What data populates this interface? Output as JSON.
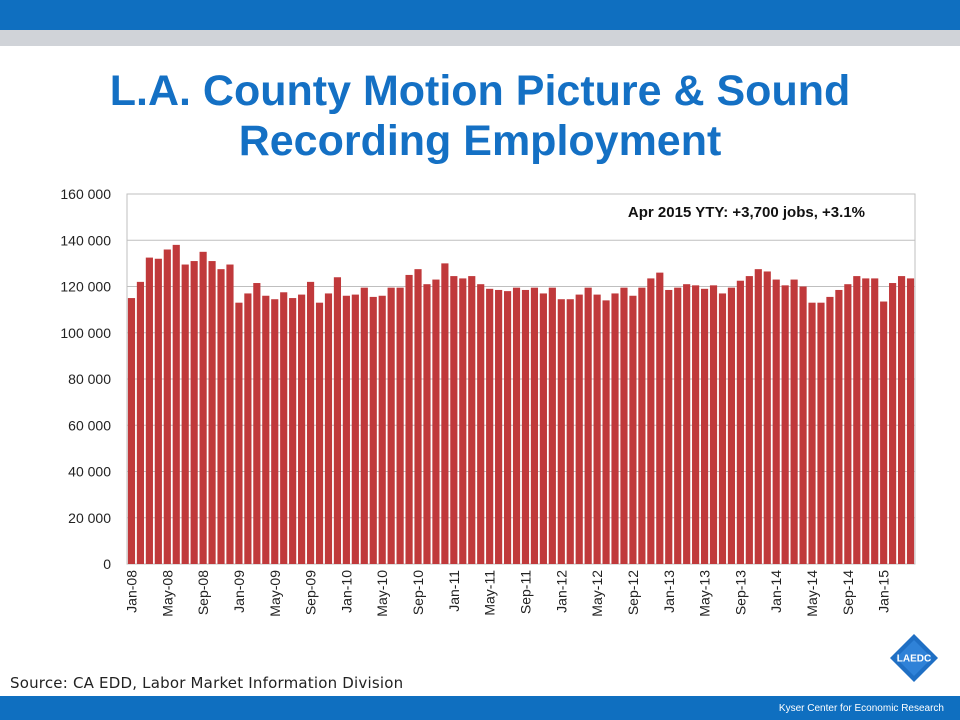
{
  "title": {
    "line1": "L.A. County Motion Picture & Sound",
    "line2": "Recording Employment"
  },
  "source": "Source: CA EDD, Labor Market Information Division",
  "footer": "Kyser Center for Economic Research",
  "logo_text": "LAEDC",
  "colors": {
    "bar": "#c0393b",
    "brand": "#0f6fc0",
    "title": "#1470c4"
  },
  "chart_data": {
    "type": "bar",
    "annotation": "Apr 2015 YTY:  +3,700 jobs, +3.1%",
    "ylim": [
      0,
      160000
    ],
    "yticks": [
      0,
      20000,
      40000,
      60000,
      80000,
      100000,
      120000,
      140000,
      160000
    ],
    "ytick_labels": [
      "0",
      "20 000",
      "40 000",
      "60 000",
      "80 000",
      "100 000",
      "120 000",
      "140 000",
      "160 000"
    ],
    "xtick_labels": [
      "Jan-08",
      "May-08",
      "Sep-08",
      "Jan-09",
      "May-09",
      "Sep-09",
      "Jan-10",
      "May-10",
      "Sep-10",
      "Jan-11",
      "May-11",
      "Sep-11",
      "Jan-12",
      "May-12",
      "Sep-12",
      "Jan-13",
      "May-13",
      "Sep-13",
      "Jan-14",
      "May-14",
      "Sep-14",
      "Jan-15"
    ],
    "xtick_every": 4,
    "grid": true,
    "categories": [
      "Jan-08",
      "Feb-08",
      "Mar-08",
      "Apr-08",
      "May-08",
      "Jun-08",
      "Jul-08",
      "Aug-08",
      "Sep-08",
      "Oct-08",
      "Nov-08",
      "Dec-08",
      "Jan-09",
      "Feb-09",
      "Mar-09",
      "Apr-09",
      "May-09",
      "Jun-09",
      "Jul-09",
      "Aug-09",
      "Sep-09",
      "Oct-09",
      "Nov-09",
      "Dec-09",
      "Jan-10",
      "Feb-10",
      "Mar-10",
      "Apr-10",
      "May-10",
      "Jun-10",
      "Jul-10",
      "Aug-10",
      "Sep-10",
      "Oct-10",
      "Nov-10",
      "Dec-10",
      "Jan-11",
      "Feb-11",
      "Mar-11",
      "Apr-11",
      "May-11",
      "Jun-11",
      "Jul-11",
      "Aug-11",
      "Sep-11",
      "Oct-11",
      "Nov-11",
      "Dec-11",
      "Jan-12",
      "Feb-12",
      "Mar-12",
      "Apr-12",
      "May-12",
      "Jun-12",
      "Jul-12",
      "Aug-12",
      "Sep-12",
      "Oct-12",
      "Nov-12",
      "Dec-12",
      "Jan-13",
      "Feb-13",
      "Mar-13",
      "Apr-13",
      "May-13",
      "Jun-13",
      "Jul-13",
      "Aug-13",
      "Sep-13",
      "Oct-13",
      "Nov-13",
      "Dec-13",
      "Jan-14",
      "Feb-14",
      "Mar-14",
      "Apr-14",
      "May-14",
      "Jun-14",
      "Jul-14",
      "Aug-14",
      "Sep-14",
      "Oct-14",
      "Nov-14",
      "Dec-14",
      "Jan-15",
      "Feb-15",
      "Mar-15",
      "Apr-15"
    ],
    "values": [
      115000,
      122000,
      132500,
      132000,
      136000,
      138000,
      129500,
      131000,
      135000,
      131000,
      127500,
      129500,
      113000,
      117000,
      121500,
      116000,
      114500,
      117500,
      115000,
      116500,
      122000,
      113000,
      117000,
      124000,
      116000,
      116500,
      119500,
      115500,
      116000,
      119500,
      119500,
      125000,
      127500,
      121000,
      123000,
      130000,
      124500,
      123500,
      124500,
      121000,
      119000,
      118500,
      118000,
      119500,
      118500,
      119500,
      117000,
      119500,
      114500,
      114500,
      116500,
      119500,
      116500,
      114000,
      117000,
      119500,
      116000,
      119500,
      123500,
      126000,
      118500,
      119500,
      121000,
      120500,
      119000,
      120500,
      117000,
      119500,
      122500,
      124500,
      127500,
      126500,
      123000,
      120500,
      123000,
      120000,
      113000,
      113000,
      115500,
      118500,
      121000,
      124500,
      123500,
      123500,
      113500,
      121500,
      124500,
      123500
    ]
  }
}
